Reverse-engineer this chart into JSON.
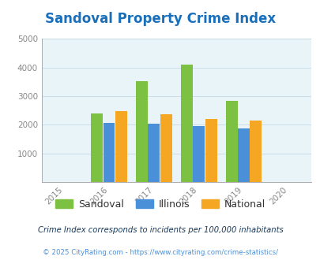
{
  "title": "Sandoval Property Crime Index",
  "years": [
    2015,
    2016,
    2017,
    2018,
    2019,
    2020
  ],
  "data": {
    "Sandoval": [
      null,
      2390,
      3520,
      4100,
      2830,
      null
    ],
    "Illinois": [
      null,
      2070,
      2040,
      1950,
      1860,
      null
    ],
    "National": [
      null,
      2470,
      2360,
      2200,
      2140,
      null
    ]
  },
  "colors": {
    "Sandoval": "#7dc142",
    "Illinois": "#4a90d9",
    "National": "#f5a623"
  },
  "ylim": [
    0,
    5000
  ],
  "yticks": [
    0,
    1000,
    2000,
    3000,
    4000,
    5000
  ],
  "xlim": [
    2014.5,
    2020.5
  ],
  "bar_width": 0.27,
  "bg_color": "#e8f4f8",
  "grid_color": "#c8dde8",
  "title_color": "#1a6fbb",
  "title_fontsize": 12,
  "footnote1": "Crime Index corresponds to incidents per 100,000 inhabitants",
  "footnote2": "© 2025 CityRating.com - https://www.cityrating.com/crime-statistics/",
  "footnote1_color": "#1a3a5c",
  "footnote2_color": "#4a90d9",
  "tick_label_color": "#888888",
  "legend_labels": [
    "Sandoval",
    "Illinois",
    "National"
  ]
}
